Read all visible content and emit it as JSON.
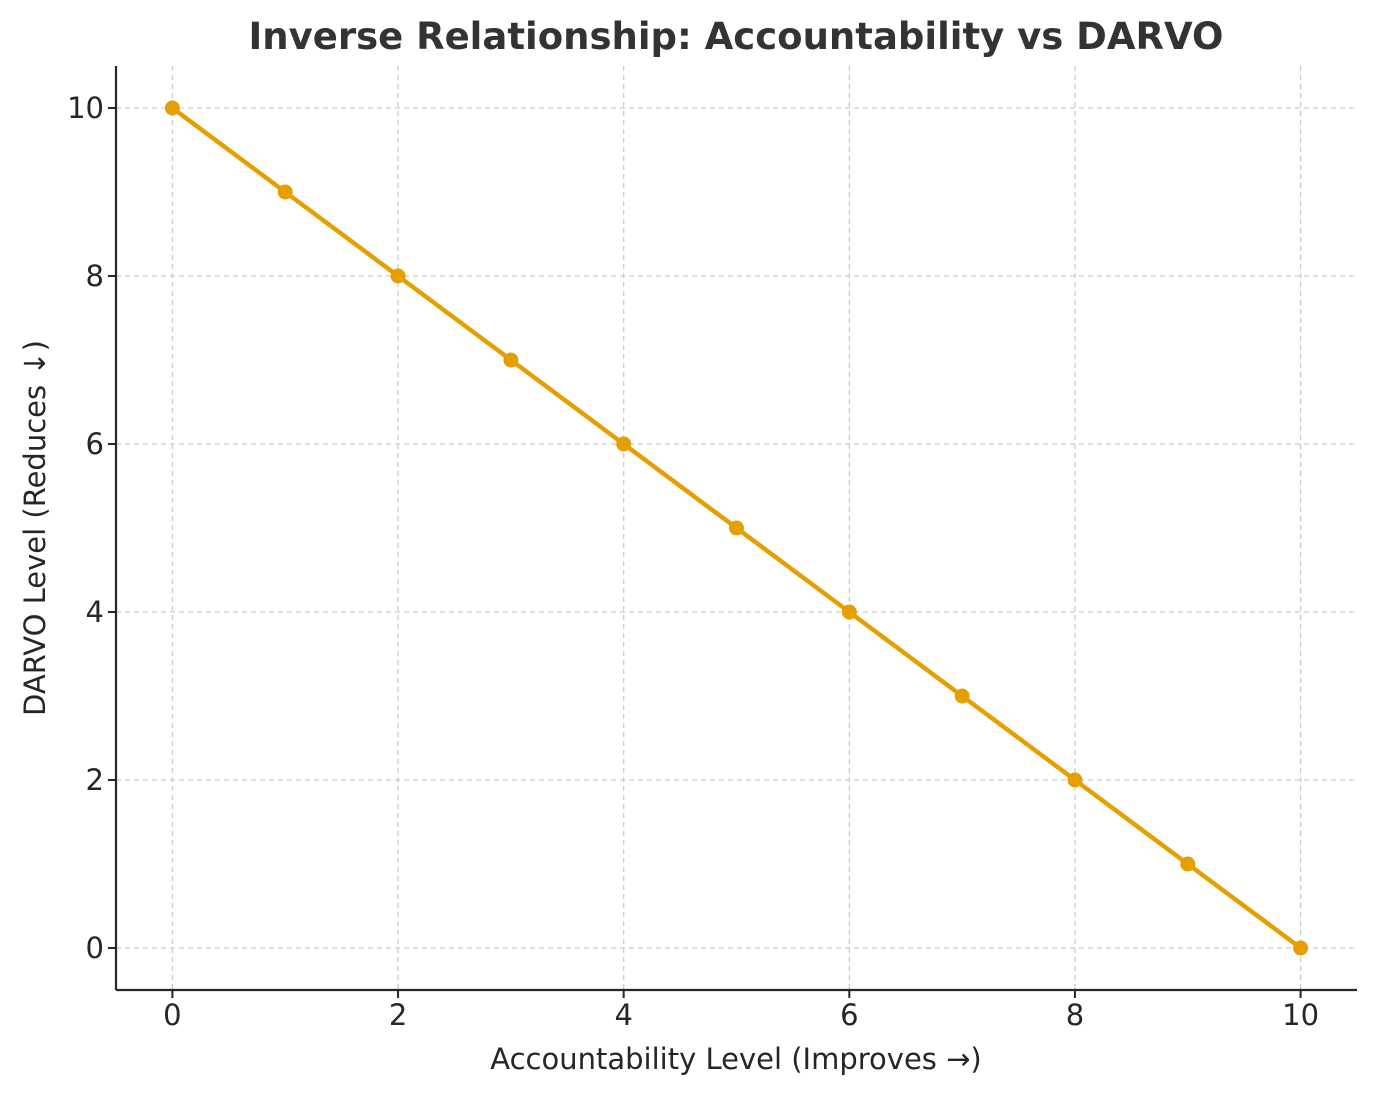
{
  "chart_data": {
    "type": "line",
    "title": "Inverse Relationship: Accountability vs DARVO",
    "xlabel": "Accountability Level (Improves →)",
    "ylabel": "DARVO Level (Reduces ↓)",
    "xlim": [
      -0.5,
      10.5
    ],
    "ylim": [
      -0.5,
      10.5
    ],
    "xticks": [
      0,
      2,
      4,
      6,
      8,
      10
    ],
    "yticks": [
      0,
      2,
      4,
      6,
      8,
      10
    ],
    "grid": true,
    "series": [
      {
        "color": "#E69F00",
        "marker": "circle",
        "x": [
          0,
          1,
          2,
          3,
          4,
          5,
          6,
          7,
          8,
          9,
          10
        ],
        "y": [
          10,
          9,
          8,
          7,
          6,
          5,
          4,
          3,
          2,
          1,
          0
        ]
      }
    ]
  }
}
